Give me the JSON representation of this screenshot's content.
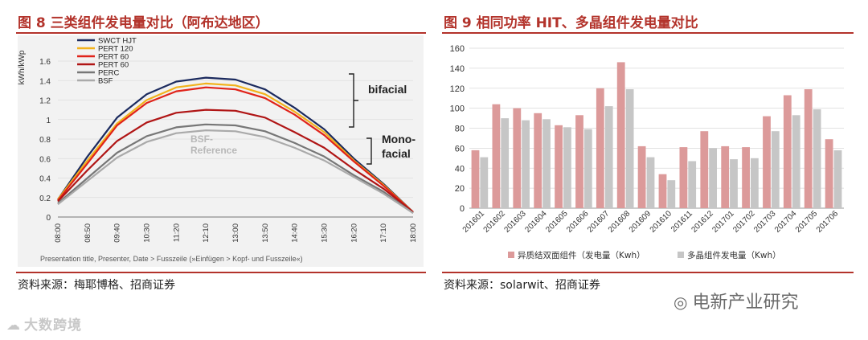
{
  "left_panel": {
    "title": "图 8  三类组件发电量对比（阿布达地区）",
    "source": "资料来源：梅耶博格、招商证券",
    "footer_note": "Presentation title, Presenter, Date > Fusszeile (»Einfügen > Kopf- und Fusszeile«)"
  },
  "right_panel": {
    "title": "图 9 相同功率 HIT、多晶组件发电量对比",
    "source": "资料来源：solarwit、招商证券"
  },
  "watermark_right": "电新产业研究",
  "watermark_left": "大数跨境",
  "colors": {
    "title_red": "#b3332b",
    "bar_pink": "#dc9a9a",
    "bar_grey": "#c6c6c6"
  },
  "chart_data": [
    {
      "type": "line",
      "title": "",
      "ylabel": "kWh/kWp",
      "xlabel": "",
      "ylim": [
        0,
        1.6
      ],
      "yticks": [
        "0",
        "0.2",
        "0.4",
        "0.6",
        "0.8",
        "1",
        "1.2",
        "1.4",
        "1.6"
      ],
      "x": [
        "08:00",
        "08:50",
        "09:40",
        "10:30",
        "11:20",
        "12:10",
        "13:00",
        "13:50",
        "14:40",
        "15:30",
        "16:20",
        "17:10",
        "18:00"
      ],
      "series": [
        {
          "name": "SWCT HJT",
          "color": "#1b2a5e",
          "values": [
            0.18,
            0.62,
            1.02,
            1.26,
            1.39,
            1.43,
            1.41,
            1.31,
            1.12,
            0.9,
            0.6,
            0.34,
            0.05
          ]
        },
        {
          "name": "PERT 120",
          "color": "#f2b21b",
          "values": [
            0.18,
            0.58,
            0.96,
            1.2,
            1.33,
            1.37,
            1.35,
            1.26,
            1.08,
            0.87,
            0.58,
            0.33,
            0.05
          ]
        },
        {
          "name": "PERT 60",
          "color": "#e0231a",
          "values": [
            0.17,
            0.55,
            0.94,
            1.17,
            1.29,
            1.33,
            1.31,
            1.22,
            1.05,
            0.84,
            0.57,
            0.32,
            0.05
          ]
        },
        {
          "name": "PERT 60",
          "color": "#b01515",
          "values": [
            0.16,
            0.48,
            0.78,
            0.97,
            1.07,
            1.1,
            1.09,
            1.02,
            0.87,
            0.71,
            0.49,
            0.29,
            0.05
          ]
        },
        {
          "name": "PERC",
          "color": "#777777",
          "values": [
            0.14,
            0.4,
            0.66,
            0.83,
            0.92,
            0.95,
            0.94,
            0.88,
            0.76,
            0.62,
            0.43,
            0.26,
            0.04
          ]
        },
        {
          "name": "BSF",
          "color": "#aaaaaa",
          "values": [
            0.13,
            0.37,
            0.61,
            0.77,
            0.86,
            0.89,
            0.88,
            0.82,
            0.71,
            0.58,
            0.41,
            0.24,
            0.04
          ]
        }
      ],
      "annotations": [
        {
          "text": "bifacial"
        },
        {
          "text": "Mono-"
        },
        {
          "text": "facial"
        },
        {
          "text": "BSF-"
        },
        {
          "text": "Reference"
        }
      ]
    },
    {
      "type": "bar",
      "title": "",
      "xlabel": "",
      "ylabel": "",
      "ylim": [
        0,
        160
      ],
      "yticks": [
        "0",
        "20",
        "40",
        "60",
        "80",
        "100",
        "120",
        "140",
        "160"
      ],
      "categories": [
        "201601",
        "201602",
        "201603",
        "201604",
        "201605",
        "201606",
        "201607",
        "201608",
        "201609",
        "201610",
        "201611",
        "201612",
        "201701",
        "201702",
        "201703",
        "201704",
        "201705",
        "201706"
      ],
      "series": [
        {
          "name": "异质结双面组件（发电量（Kwh）",
          "color": "#dc9a9a",
          "values": [
            58,
            104,
            100,
            95,
            83,
            93,
            120,
            146,
            62,
            34,
            61,
            77,
            62,
            61,
            92,
            113,
            119,
            69
          ]
        },
        {
          "name": "多晶组件发电量（Kwh）",
          "color": "#c6c6c6",
          "values": [
            51,
            90,
            88,
            89,
            81,
            79,
            102,
            119,
            51,
            28,
            47,
            60,
            49,
            50,
            77,
            93,
            99,
            58
          ]
        }
      ],
      "grid": true,
      "legend": "bottom"
    }
  ]
}
